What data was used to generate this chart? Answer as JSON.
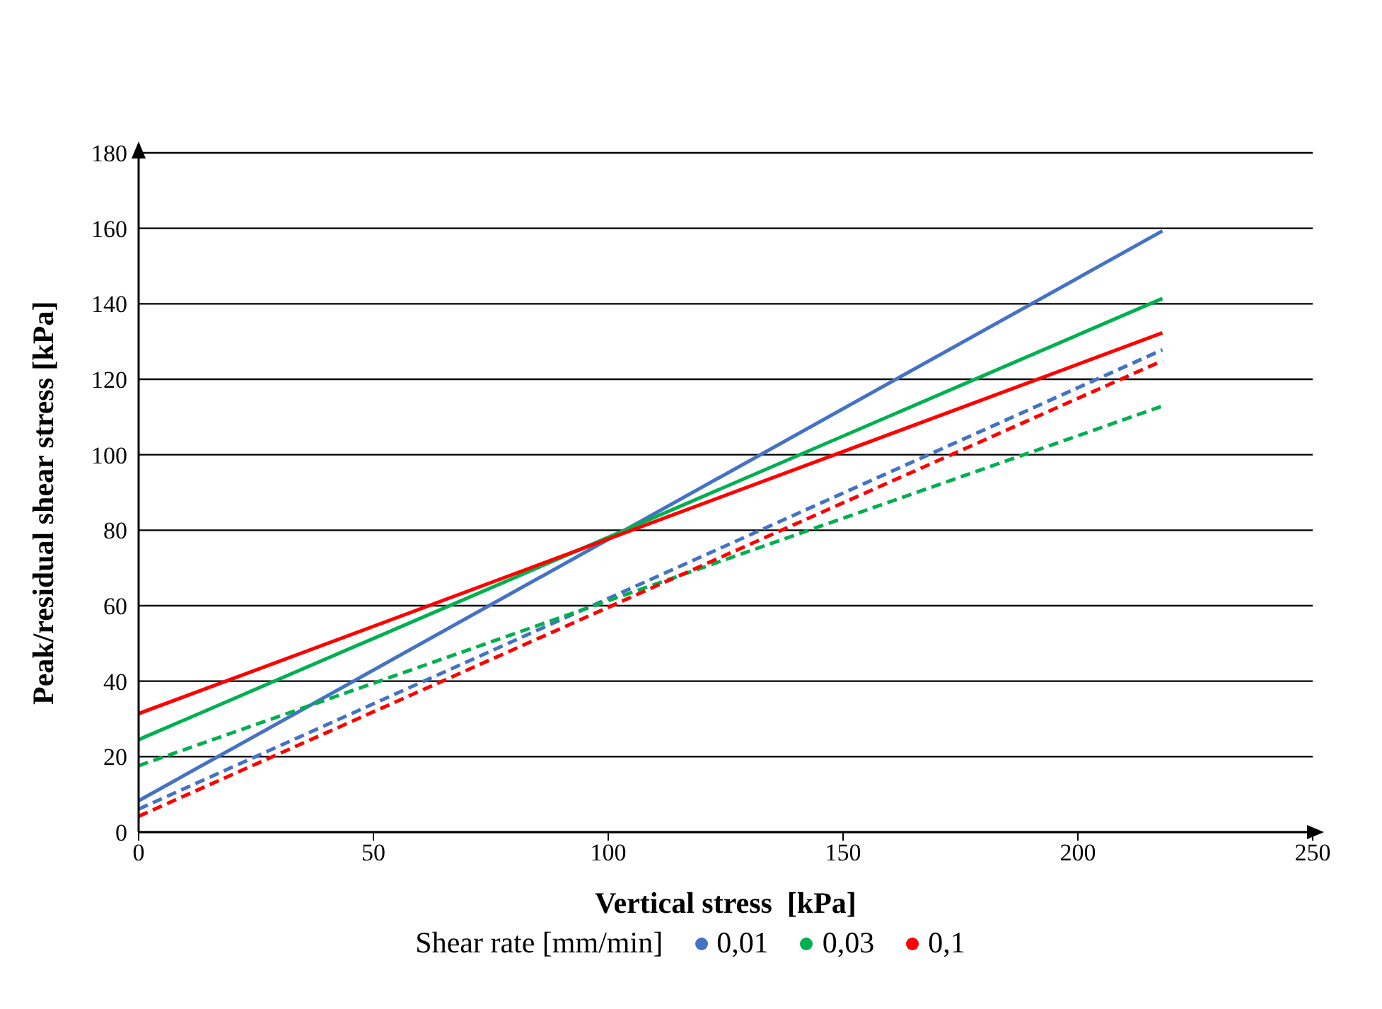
{
  "chart_data": {
    "type": "line",
    "xlabel": "Vertical stress  [kPa]",
    "ylabel": "Peak/residual shear stress [kPa]",
    "legend_title": "Shear rate [mm/min]",
    "legend": "bottom",
    "grid": "y",
    "xlim": [
      0,
      250
    ],
    "xticks": [
      0,
      50,
      100,
      150,
      200,
      250
    ],
    "ylim": [
      0,
      180
    ],
    "yticks": [
      0,
      20,
      40,
      60,
      80,
      100,
      120,
      140,
      160,
      180
    ],
    "x": [
      0,
      218
    ],
    "series": [
      {
        "name": "0,01",
        "color": "#4472c4",
        "values": [
          8.3,
          159.3
        ],
        "line_style": "solid"
      },
      {
        "name": "0,03",
        "color": "#00b050",
        "values": [
          24.5,
          141.4
        ],
        "line_style": "solid"
      },
      {
        "name": "0,1",
        "color": "#ff0000",
        "values": [
          31.4,
          132.3
        ],
        "line_style": "solid"
      },
      {
        "color": "#4472c4",
        "values": [
          6.1,
          127.8
        ],
        "line_style": "dashed"
      },
      {
        "color": "#00b050",
        "values": [
          17.6,
          112.9
        ],
        "line_style": "dashed"
      },
      {
        "color": "#ff0000",
        "values": [
          4.2,
          124.9
        ],
        "line_style": "dashed"
      }
    ]
  }
}
